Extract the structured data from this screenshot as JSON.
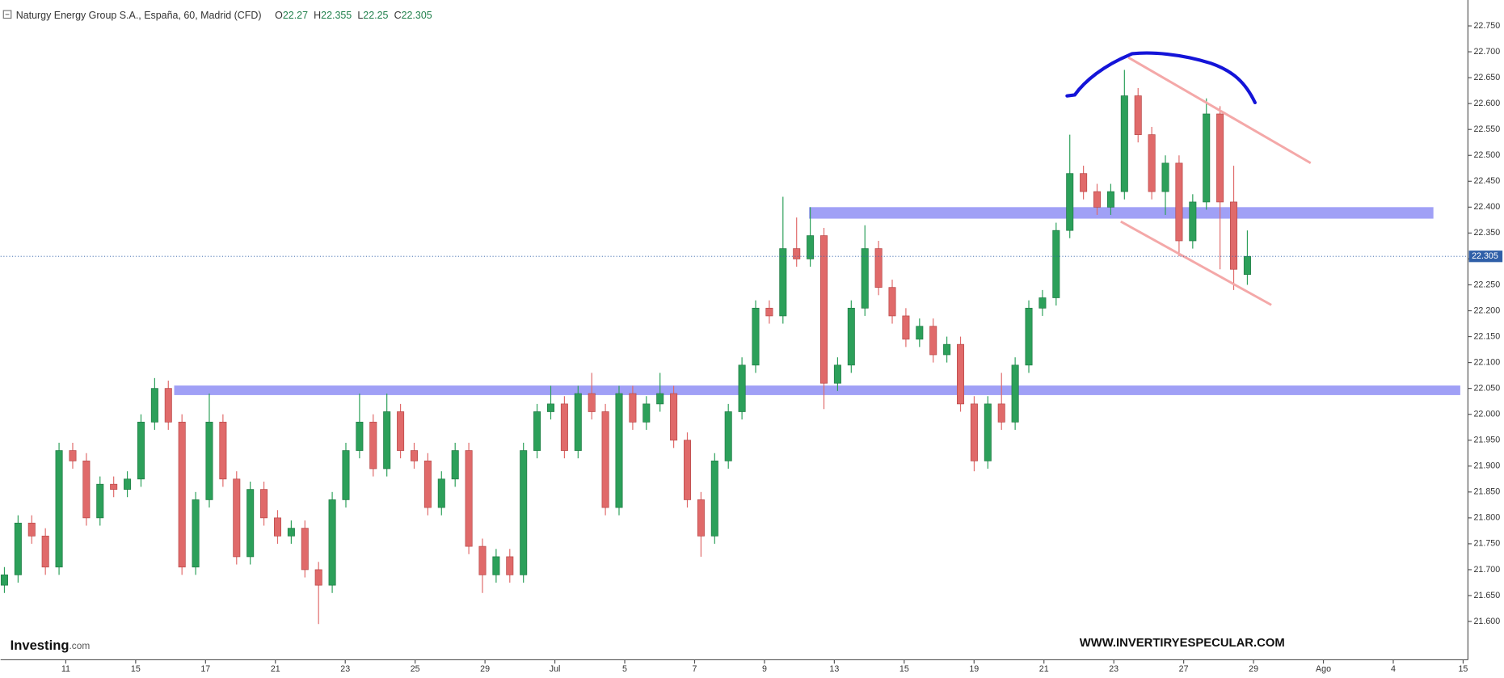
{
  "chart_data": {
    "type": "candlestick",
    "title": "Naturgy Energy Group S.A., España, 60, Madrid (CFD)",
    "ohlc_prefixes": [
      "O",
      "H",
      "L",
      "C"
    ],
    "logo": "Investing",
    "logo_suffix": ".com",
    "watermark": "WWW.INVERTIRYESPECULAR.COM",
    "up_color": "#2ca05a",
    "down_color": "#e06a6a",
    "price_line_color": "#2f5fa8",
    "categories": [
      "11",
      "15",
      "17",
      "21",
      "23",
      "25",
      "29",
      "Jul",
      "5",
      "7",
      "9",
      "13",
      "15",
      "19",
      "21",
      "23",
      "27",
      "29",
      "Ago",
      "4",
      "15"
    ],
    "open": [
      21.67,
      21.69,
      21.79,
      21.765,
      21.705,
      21.93,
      21.91,
      21.8,
      21.865,
      21.855,
      21.875,
      21.985,
      22.05,
      21.985,
      21.705,
      21.835,
      21.985,
      21.875,
      21.725,
      21.855,
      21.8,
      21.765,
      21.78,
      21.7,
      21.67,
      21.835,
      21.93,
      21.985,
      21.895,
      22.005,
      21.93,
      21.91,
      21.82,
      21.875,
      21.93,
      21.745,
      21.69,
      21.725,
      21.69,
      21.93,
      22.005,
      22.02,
      21.93,
      22.04,
      22.005,
      21.82,
      22.04,
      21.985,
      22.02,
      22.04,
      21.95,
      21.835,
      21.765,
      21.91,
      22.005,
      22.095,
      22.205,
      22.19,
      22.32,
      22.3,
      22.345,
      22.06,
      22.095,
      22.205,
      22.32,
      22.245,
      22.19,
      22.145,
      22.17,
      22.115,
      22.135,
      22.02,
      21.91,
      22.02,
      21.985,
      22.095,
      22.205,
      22.225,
      22.355,
      22.465,
      22.43,
      22.4,
      22.43,
      22.615,
      22.54,
      22.43,
      22.485,
      22.335,
      22.41,
      22.58,
      22.41,
      22.27
    ],
    "high": [
      21.705,
      21.805,
      21.805,
      21.78,
      21.945,
      21.945,
      21.925,
      21.88,
      21.88,
      21.89,
      22.0,
      22.07,
      22.065,
      22.0,
      21.85,
      22.04,
      22.0,
      21.89,
      21.87,
      21.87,
      21.815,
      21.795,
      21.795,
      21.715,
      21.85,
      21.945,
      22.04,
      22.0,
      22.04,
      22.02,
      21.945,
      21.925,
      21.89,
      21.945,
      21.945,
      21.76,
      21.74,
      21.74,
      21.945,
      22.02,
      22.055,
      22.035,
      22.055,
      22.08,
      22.02,
      22.055,
      22.055,
      22.035,
      22.08,
      22.055,
      21.965,
      21.85,
      21.925,
      22.02,
      22.11,
      22.22,
      22.22,
      22.42,
      22.38,
      22.4,
      22.36,
      22.11,
      22.22,
      22.365,
      22.335,
      22.26,
      22.205,
      22.185,
      22.185,
      22.15,
      22.15,
      22.035,
      22.035,
      22.08,
      22.11,
      22.22,
      22.24,
      22.37,
      22.54,
      22.48,
      22.445,
      22.445,
      22.665,
      22.63,
      22.555,
      22.5,
      22.5,
      22.425,
      22.61,
      22.595,
      22.48,
      22.355
    ],
    "low": [
      21.655,
      21.675,
      21.75,
      21.69,
      21.69,
      21.895,
      21.785,
      21.785,
      21.84,
      21.84,
      21.86,
      21.97,
      21.97,
      21.69,
      21.69,
      21.82,
      21.86,
      21.71,
      21.71,
      21.785,
      21.75,
      21.75,
      21.685,
      21.595,
      21.655,
      21.82,
      21.915,
      21.88,
      21.88,
      21.915,
      21.895,
      21.805,
      21.805,
      21.86,
      21.73,
      21.655,
      21.675,
      21.675,
      21.675,
      21.915,
      21.99,
      21.915,
      21.915,
      21.99,
      21.805,
      21.805,
      21.97,
      21.97,
      22.005,
      21.935,
      21.82,
      21.725,
      21.75,
      21.895,
      21.99,
      22.08,
      22.175,
      22.175,
      22.285,
      22.285,
      22.01,
      22.045,
      22.08,
      22.19,
      22.23,
      22.175,
      22.13,
      22.13,
      22.1,
      22.1,
      22.005,
      21.89,
      21.895,
      21.97,
      21.97,
      22.08,
      22.19,
      22.21,
      22.34,
      22.415,
      22.385,
      22.385,
      22.415,
      22.525,
      22.415,
      22.385,
      22.305,
      22.32,
      22.395,
      22.28,
      22.24,
      22.25
    ],
    "close": [
      21.69,
      21.79,
      21.765,
      21.705,
      21.93,
      21.91,
      21.8,
      21.865,
      21.855,
      21.875,
      21.985,
      22.05,
      21.985,
      21.705,
      21.835,
      21.985,
      21.875,
      21.725,
      21.855,
      21.8,
      21.765,
      21.78,
      21.7,
      21.67,
      21.835,
      21.93,
      21.985,
      21.895,
      22.005,
      21.93,
      21.91,
      21.82,
      21.875,
      21.93,
      21.745,
      21.69,
      21.725,
      21.69,
      21.93,
      22.005,
      22.02,
      21.93,
      22.04,
      22.005,
      21.82,
      22.04,
      21.985,
      22.02,
      22.04,
      21.95,
      21.835,
      21.765,
      21.91,
      22.005,
      22.095,
      22.205,
      22.19,
      22.32,
      22.3,
      22.345,
      22.06,
      22.095,
      22.205,
      22.32,
      22.245,
      22.19,
      22.145,
      22.17,
      22.115,
      22.135,
      22.02,
      21.91,
      22.02,
      21.985,
      22.095,
      22.205,
      22.225,
      22.355,
      22.465,
      22.43,
      22.4,
      22.43,
      22.615,
      22.54,
      22.43,
      22.485,
      22.335,
      22.41,
      22.58,
      22.41,
      22.28,
      22.305
    ],
    "ylim": [
      21.526,
      22.8
    ],
    "yticks": [
      {
        "value": 21.6,
        "label": "21.600"
      },
      {
        "value": 21.65,
        "label": "21.650"
      },
      {
        "value": 21.7,
        "label": "21.700"
      },
      {
        "value": 21.75,
        "label": "21.750"
      },
      {
        "value": 21.8,
        "label": "21.800"
      },
      {
        "value": 21.85,
        "label": "21.850"
      },
      {
        "value": 21.9,
        "label": "21.900"
      },
      {
        "value": 21.95,
        "label": "21.950"
      },
      {
        "value": 22,
        "label": "22.000"
      },
      {
        "value": 22.05,
        "label": "22.050"
      },
      {
        "value": 22.1,
        "label": "22.100"
      },
      {
        "value": 22.15,
        "label": "22.150"
      },
      {
        "value": 22.2,
        "label": "22.200"
      },
      {
        "value": 22.25,
        "label": "22.250"
      },
      {
        "value": 22.3,
        "label": "22.300"
      },
      {
        "value": 22.35,
        "label": "22.350"
      },
      {
        "value": 22.4,
        "label": "22.400"
      },
      {
        "value": 22.45,
        "label": "22.450"
      },
      {
        "value": 22.5,
        "label": "22.500"
      },
      {
        "value": 22.55,
        "label": "22.550"
      },
      {
        "value": 22.6,
        "label": "22.600"
      },
      {
        "value": 22.65,
        "label": "22.650"
      },
      {
        "value": 22.7,
        "label": "22.700"
      },
      {
        "value": 22.75,
        "label": "22.750"
      }
    ],
    "last_price": {
      "value": 22.305,
      "label": "22.305"
    },
    "grid": false
  }
}
